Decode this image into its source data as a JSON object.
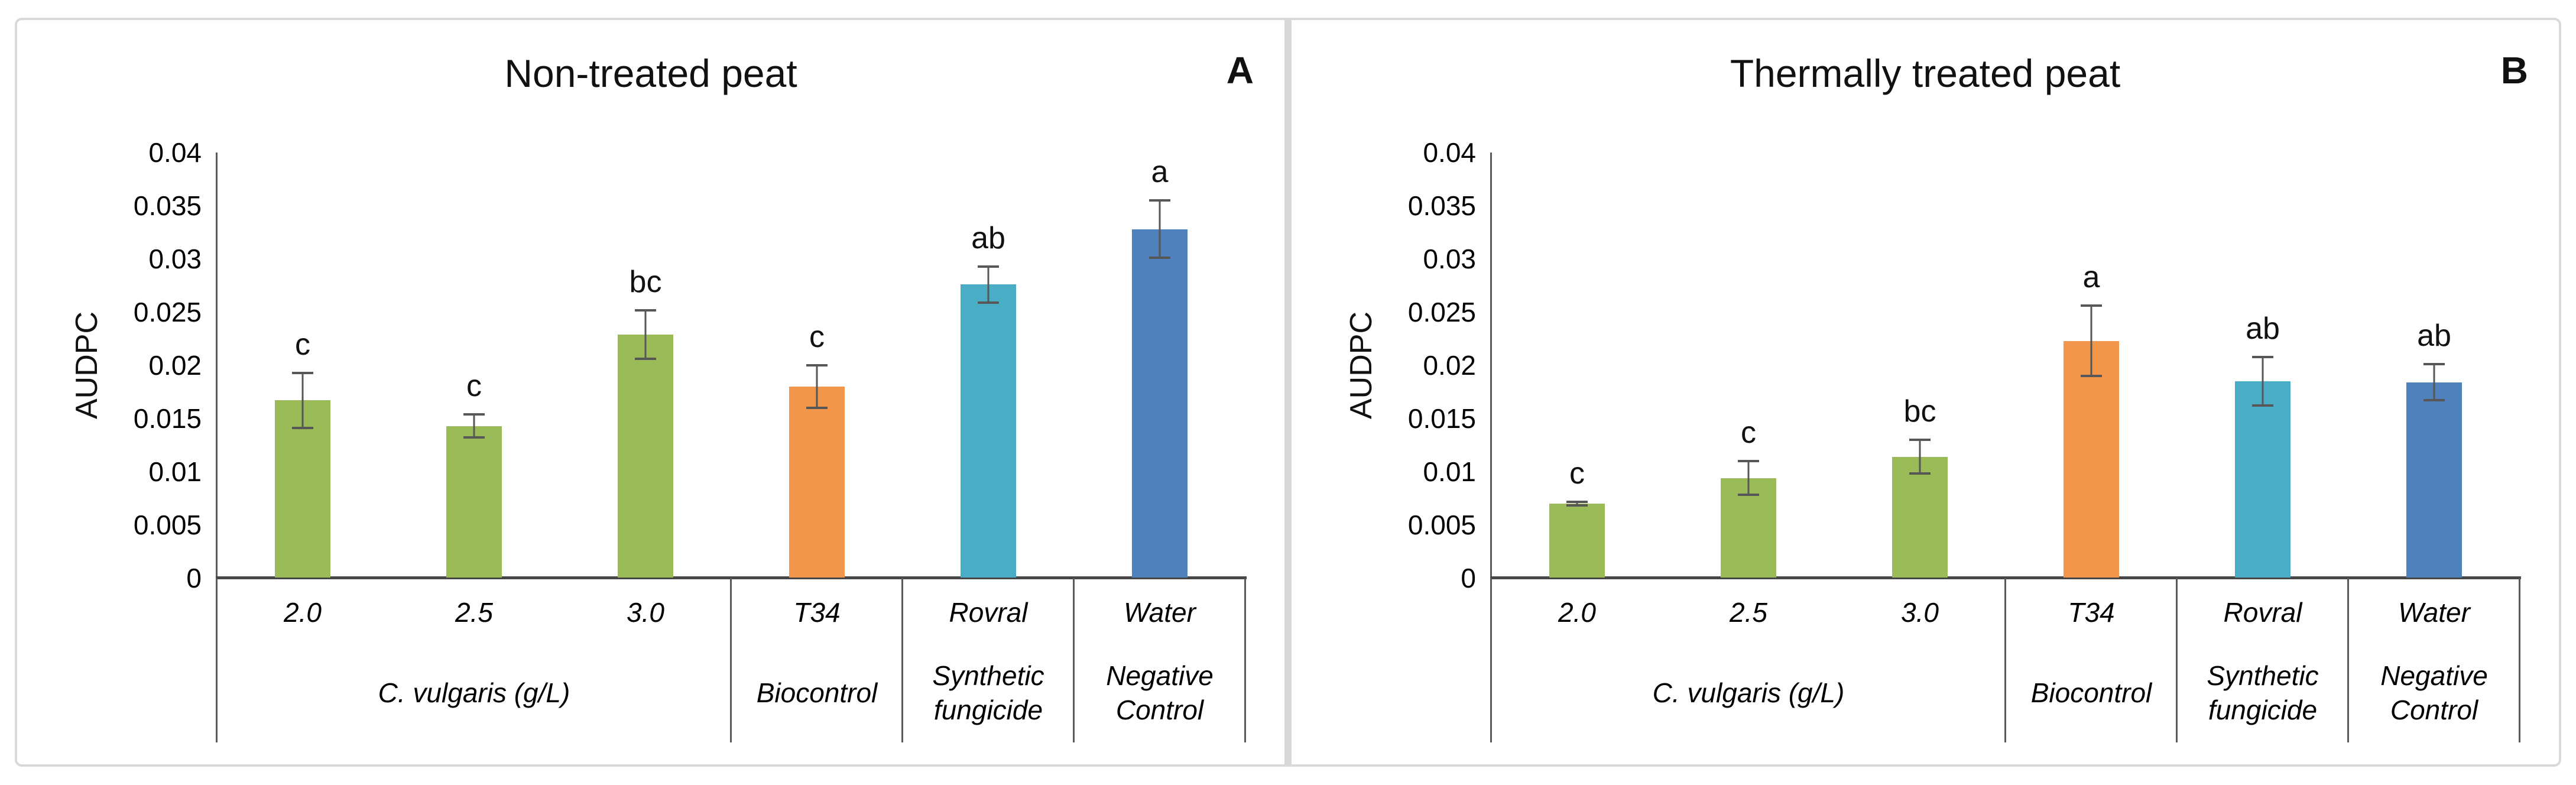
{
  "style": {
    "frame_border_color": "#d9d9d9",
    "background_color": "#ffffff",
    "axis_color": "#595959",
    "x_axis_color": "#474747",
    "error_bar_color": "#575757",
    "text_color": "#000000"
  },
  "chart_data": [
    {
      "type": "bar",
      "title": "Non-treated peat",
      "panel_letter": "A",
      "ylabel": "AUDPC",
      "xlabel": "",
      "ylim": [
        0,
        0.04
      ],
      "grid": false,
      "legend": "none",
      "y_ticks": [
        {
          "v": 0,
          "label": "0"
        },
        {
          "v": 0.005,
          "label": "0.005"
        },
        {
          "v": 0.01,
          "label": "0.01"
        },
        {
          "v": 0.015,
          "label": "0.015"
        },
        {
          "v": 0.02,
          "label": "0.02"
        },
        {
          "v": 0.025,
          "label": "0.025"
        },
        {
          "v": 0.03,
          "label": "0.03"
        },
        {
          "v": 0.035,
          "label": "0.035"
        },
        {
          "v": 0.04,
          "label": "0.04"
        }
      ],
      "categories": [
        "2.0",
        "2.5",
        "3.0",
        "T34",
        "Rovral",
        "Water"
      ],
      "values": [
        0.0167,
        0.0143,
        0.0229,
        0.018,
        0.0276,
        0.0328
      ],
      "errors": [
        0.0027,
        0.0012,
        0.0024,
        0.0021,
        0.0018,
        0.0028
      ],
      "sig_letters": [
        "c",
        "c",
        "bc",
        "c",
        "ab",
        "a"
      ],
      "bar_colors": [
        "#9BBB59",
        "#9BBB59",
        "#9BBB59",
        "#F2964B",
        "#4BACC6",
        "#4F81BD"
      ],
      "groups": [
        {
          "label_lines": [
            "C. vulgaris (g/L)"
          ],
          "span": 3
        },
        {
          "label_lines": [
            "Biocontrol"
          ],
          "span": 1
        },
        {
          "label_lines": [
            "Synthetic",
            "fungicide"
          ],
          "span": 1
        },
        {
          "label_lines": [
            "Negative",
            "Control"
          ],
          "span": 1
        }
      ]
    },
    {
      "type": "bar",
      "title": "Thermally treated peat",
      "panel_letter": "B",
      "ylabel": "AUDPC",
      "xlabel": "",
      "ylim": [
        0,
        0.04
      ],
      "grid": false,
      "legend": "none",
      "y_ticks": [
        {
          "v": 0,
          "label": "0"
        },
        {
          "v": 0.005,
          "label": "0.005"
        },
        {
          "v": 0.01,
          "label": "0.01"
        },
        {
          "v": 0.015,
          "label": "0.015"
        },
        {
          "v": 0.02,
          "label": "0.02"
        },
        {
          "v": 0.025,
          "label": "0.025"
        },
        {
          "v": 0.03,
          "label": "0.03"
        },
        {
          "v": 0.035,
          "label": "0.035"
        },
        {
          "v": 0.04,
          "label": "0.04"
        }
      ],
      "categories": [
        "2.0",
        "2.5",
        "3.0",
        "T34",
        "Rovral",
        "Water"
      ],
      "values": [
        0.007,
        0.0094,
        0.0114,
        0.0223,
        0.0185,
        0.0184
      ],
      "errors": [
        0.0003,
        0.0017,
        0.0017,
        0.0034,
        0.0024,
        0.0018
      ],
      "sig_letters": [
        "c",
        "c",
        "bc",
        "a",
        "ab",
        "ab"
      ],
      "bar_colors": [
        "#9BBB59",
        "#9BBB59",
        "#9BBB59",
        "#F2964B",
        "#4BACC6",
        "#4F81BD"
      ],
      "groups": [
        {
          "label_lines": [
            "C. vulgaris (g/L)"
          ],
          "span": 3
        },
        {
          "label_lines": [
            "Biocontrol"
          ],
          "span": 1
        },
        {
          "label_lines": [
            "Synthetic",
            "fungicide"
          ],
          "span": 1
        },
        {
          "label_lines": [
            "Negative",
            "Control"
          ],
          "span": 1
        }
      ]
    }
  ]
}
